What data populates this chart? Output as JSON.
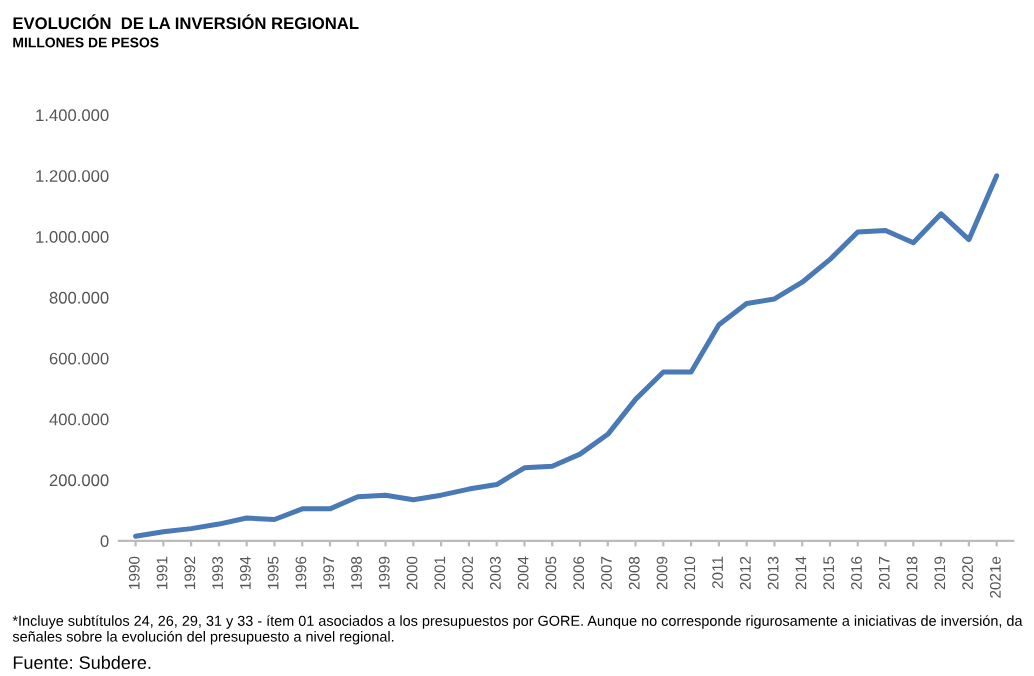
{
  "chart_data": {
    "type": "line",
    "title": "EVOLUCIÓN  DE LA INVERSIÓN REGIONAL",
    "subtitle": "MILLONES DE PESOS",
    "categories": [
      "1990",
      "1991",
      "1992",
      "1993",
      "1994",
      "1995",
      "1996",
      "1997",
      "1998",
      "1999",
      "2000",
      "2001",
      "2002",
      "2003",
      "2004",
      "2005",
      "2006",
      "2007",
      "2008",
      "2009",
      "2010",
      "2011",
      "2012",
      "2013",
      "2014",
      "2015",
      "2016",
      "2017",
      "2018",
      "2019",
      "2020",
      "2021e"
    ],
    "series": [
      {
        "color": "#4a7ab5",
        "values": [
          15000,
          30000,
          40000,
          55000,
          75000,
          70000,
          105000,
          105000,
          145000,
          150000,
          135000,
          150000,
          170000,
          185000,
          240000,
          245000,
          285000,
          350000,
          465000,
          555000,
          555000,
          710000,
          780000,
          795000,
          850000,
          925000,
          1015000,
          1020000,
          980000,
          1075000,
          990000,
          1200000
        ]
      }
    ],
    "ylim": [
      0,
      1400000
    ],
    "yticks": [
      0,
      {
        "value": 200000,
        "label": "200.000"
      },
      {
        "value": 400000,
        "label": "400.000"
      },
      {
        "value": 600000,
        "label": "600.000"
      },
      {
        "value": 800000,
        "label": "800.000"
      },
      {
        "value": 1000000,
        "label": "1.000.000"
      },
      {
        "value": 1200000,
        "label": "1.200.000"
      },
      {
        "value": 1400000,
        "label": "1.400.000"
      }
    ],
    "grid": false,
    "marker": "none",
    "line_style": "solid",
    "annotations": [
      "*Incluye subtítulos 24, 26, 29, 31 y 33 - ítem 01 asociados a los presupuestos por GORE. Aunque no corresponde rigurosamente a iniciativas de inversión, da señales sobre la evolución del presupuesto a nivel regional.",
      "Fuente: Subdere."
    ]
  }
}
